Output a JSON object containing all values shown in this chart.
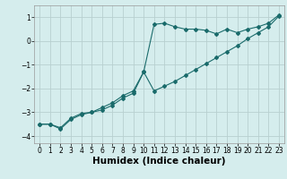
{
  "title": "",
  "xlabel": "Humidex (Indice chaleur)",
  "ylabel": "",
  "background_color": "#d5eded",
  "grid_color": "#b8d0d0",
  "line_color": "#1a6b6b",
  "x_data": [
    0,
    1,
    2,
    3,
    4,
    5,
    6,
    7,
    8,
    9,
    10,
    11,
    12,
    13,
    14,
    15,
    16,
    17,
    18,
    19,
    20,
    21,
    22,
    23
  ],
  "y_line1": [
    -3.5,
    -3.5,
    -3.7,
    -3.3,
    -3.1,
    -3.0,
    -2.9,
    -2.7,
    -2.4,
    -2.2,
    -1.3,
    0.7,
    0.75,
    0.6,
    0.5,
    0.5,
    0.45,
    0.3,
    0.5,
    0.35,
    0.5,
    0.6,
    0.75,
    1.1
  ],
  "y_line2": [
    -3.5,
    -3.5,
    -3.65,
    -3.25,
    -3.05,
    -3.0,
    -2.8,
    -2.6,
    -2.3,
    -2.1,
    -1.3,
    -2.1,
    -1.9,
    -1.7,
    -1.45,
    -1.2,
    -0.95,
    -0.7,
    -0.45,
    -0.2,
    0.1,
    0.35,
    0.6,
    1.05
  ],
  "xlim": [
    -0.5,
    23.5
  ],
  "ylim": [
    -4.3,
    1.5
  ],
  "yticks": [
    -4,
    -3,
    -2,
    -1,
    0,
    1
  ],
  "xticks": [
    0,
    1,
    2,
    3,
    4,
    5,
    6,
    7,
    8,
    9,
    10,
    11,
    12,
    13,
    14,
    15,
    16,
    17,
    18,
    19,
    20,
    21,
    22,
    23
  ],
  "tick_fontsize": 5.5,
  "xlabel_fontsize": 7.5,
  "marker": "D",
  "markersize": 2.0,
  "linewidth": 0.8
}
